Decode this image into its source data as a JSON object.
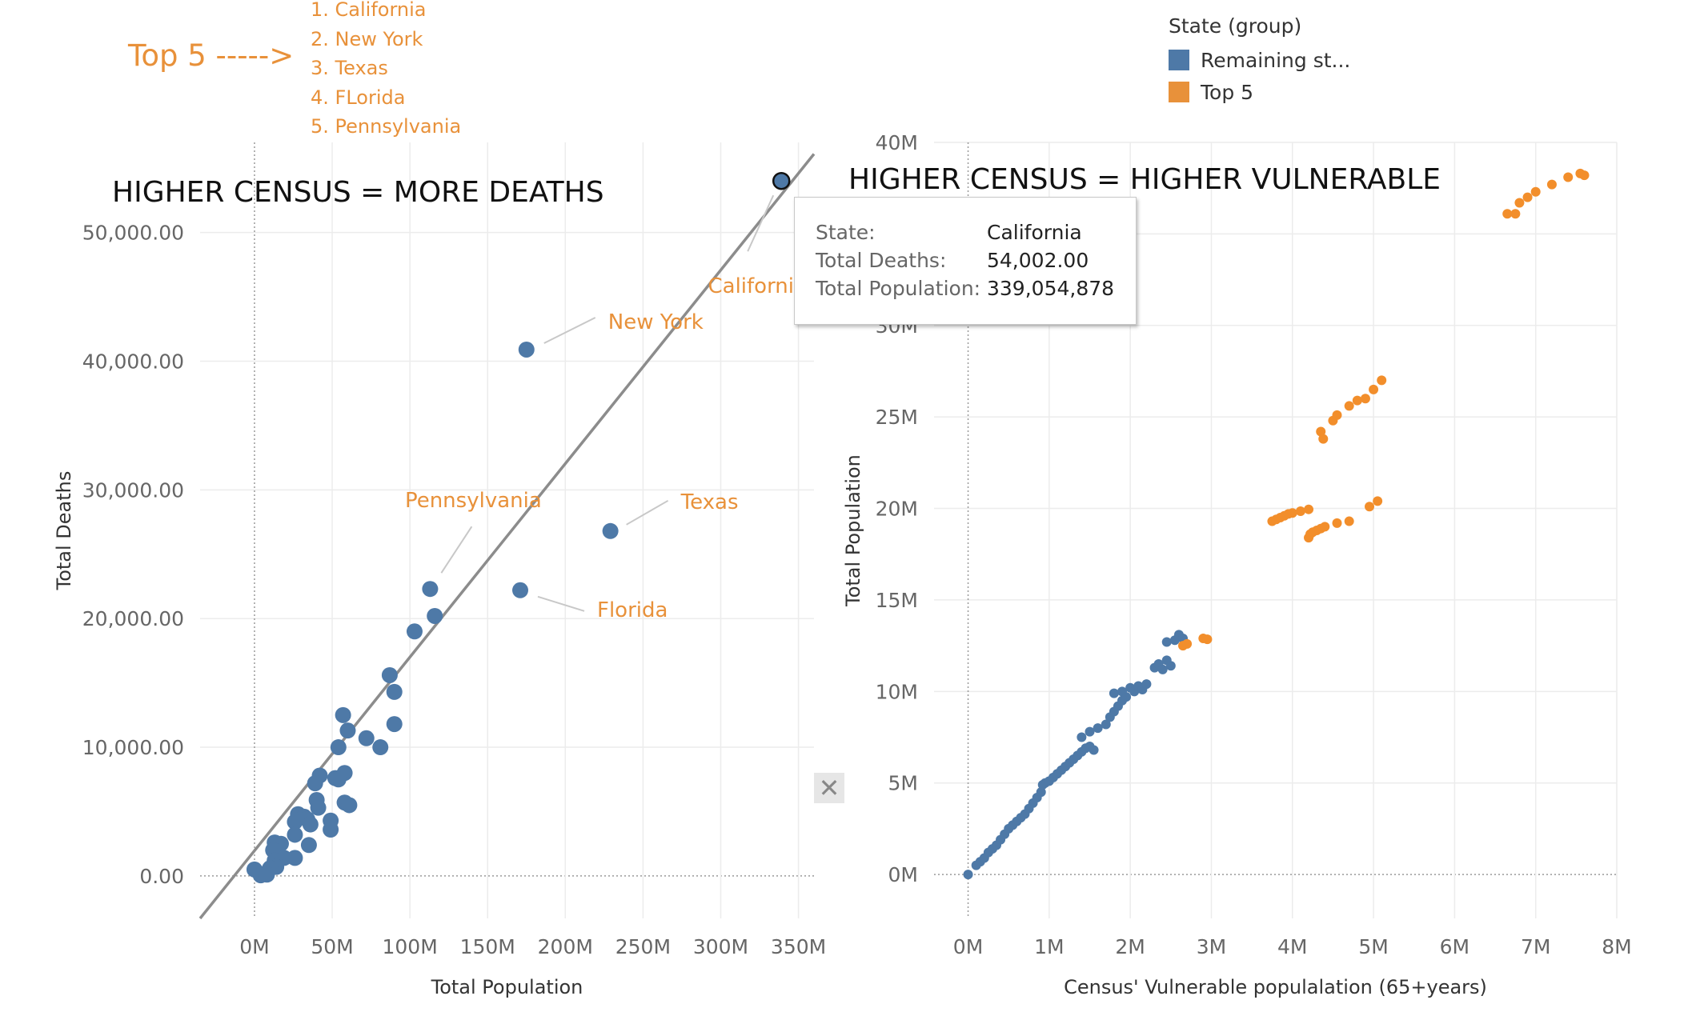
{
  "annotation": {
    "top5_label": "Top 5 ----->",
    "top5_items": [
      "1. California",
      "2. New York",
      "3. Texas",
      "4. FLorida",
      "5. Pennsylvania"
    ]
  },
  "legend": {
    "title": "State (group)",
    "items": [
      {
        "label": "Remaining st...",
        "color": "#4e79a7"
      },
      {
        "label": "Top 5",
        "color": "#f28e2b"
      }
    ]
  },
  "tooltip": {
    "rows": [
      {
        "key": "State:",
        "value": "California"
      },
      {
        "key": "Total Deaths:",
        "value": "54,002.00"
      },
      {
        "key": "Total Population:",
        "value": "339,054,878"
      }
    ]
  },
  "controls": {
    "close_icon": "close-icon"
  },
  "colors": {
    "blue": "#4e79a7",
    "orange": "#e8913a",
    "grid": "#ececec"
  },
  "chart_data": [
    {
      "type": "scatter",
      "title": "HIGHER CENSUS = MORE DEATHS",
      "xlabel": "Total Population",
      "ylabel": "Total Deaths",
      "xlim": [
        -35,
        360
      ],
      "ylim": [
        -3300,
        57000
      ],
      "xticks": [
        0,
        50,
        100,
        150,
        200,
        250,
        300,
        350
      ],
      "xtick_labels": [
        "0M",
        "50M",
        "100M",
        "150M",
        "200M",
        "250M",
        "300M",
        "350M"
      ],
      "yticks": [
        0,
        10000,
        20000,
        30000,
        40000,
        50000
      ],
      "ytick_labels": [
        "0.00",
        "10,000.00",
        "20,000.00",
        "30,000.00",
        "40,000.00",
        "50,000.00"
      ],
      "trend_line": {
        "x": [
          -35,
          360
        ],
        "y": [
          -3300,
          56100
        ]
      },
      "highlighted": {
        "name": "California",
        "x": 339,
        "y": 54002
      },
      "labels": [
        {
          "text": "California",
          "x": 339,
          "y": 54002
        },
        {
          "text": "New York",
          "x": 175,
          "y": 40900
        },
        {
          "text": "Texas",
          "x": 229,
          "y": 26800
        },
        {
          "text": "Florida",
          "x": 171,
          "y": 22200
        },
        {
          "text": "Pennsylvania",
          "x": 113,
          "y": 22300
        }
      ],
      "series": [
        {
          "name": "Remaining st...",
          "points": [
            [
              339,
              54002
            ],
            [
              175,
              40900
            ],
            [
              229,
              26800
            ],
            [
              171,
              22200
            ],
            [
              113,
              22300
            ],
            [
              116,
              20200
            ],
            [
              103,
              19000
            ],
            [
              87,
              15600
            ],
            [
              90,
              14300
            ],
            [
              57,
              12500
            ],
            [
              60,
              11300
            ],
            [
              90,
              11800
            ],
            [
              72,
              10700
            ],
            [
              81,
              10000
            ],
            [
              54,
              10000
            ],
            [
              58,
              8000
            ],
            [
              42,
              7800
            ],
            [
              39,
              7200
            ],
            [
              54,
              7500
            ],
            [
              52,
              7600
            ],
            [
              40,
              5900
            ],
            [
              41,
              5300
            ],
            [
              58,
              5700
            ],
            [
              61,
              5500
            ],
            [
              28,
              4800
            ],
            [
              32,
              4600
            ],
            [
              34,
              4400
            ],
            [
              49,
              4300
            ],
            [
              26,
              4200
            ],
            [
              36,
              4000
            ],
            [
              49,
              3600
            ],
            [
              26,
              3200
            ],
            [
              35,
              2400
            ],
            [
              13,
              2600
            ],
            [
              17,
              2500
            ],
            [
              12,
              2000
            ],
            [
              26,
              1400
            ],
            [
              19,
              1400
            ],
            [
              13,
              1200
            ],
            [
              14,
              700
            ],
            [
              10,
              600
            ],
            [
              0,
              500
            ],
            [
              7,
              200
            ],
            [
              4,
              50
            ],
            [
              8,
              100
            ]
          ]
        }
      ]
    },
    {
      "type": "scatter",
      "title": "HIGHER CENSUS = HIGHER VULNERABLE",
      "xlabel": "Census' Vulnerable populalation (65+years)",
      "ylabel": "Total Population",
      "xlim": [
        -0.42,
        8.0
      ],
      "ylim": [
        -2.4,
        40.0
      ],
      "xticks": [
        0,
        1,
        2,
        3,
        4,
        5,
        6,
        7,
        8
      ],
      "xtick_labels": [
        "0M",
        "1M",
        "2M",
        "3M",
        "4M",
        "5M",
        "6M",
        "7M",
        "8M"
      ],
      "yticks": [
        0,
        5,
        10,
        15,
        20,
        25,
        30,
        35,
        40
      ],
      "ytick_labels": [
        "0M",
        "5M",
        "10M",
        "15M",
        "20M",
        "25M",
        "30M",
        "",
        "40M"
      ],
      "series": [
        {
          "name": "Remaining st...",
          "color": "#4e79a7",
          "points": [
            [
              0.0,
              0.0
            ],
            [
              0.1,
              0.5
            ],
            [
              0.15,
              0.7
            ],
            [
              0.2,
              0.9
            ],
            [
              0.25,
              1.2
            ],
            [
              0.3,
              1.4
            ],
            [
              0.35,
              1.6
            ],
            [
              0.4,
              1.9
            ],
            [
              0.45,
              2.2
            ],
            [
              0.5,
              2.5
            ],
            [
              0.55,
              2.7
            ],
            [
              0.6,
              2.9
            ],
            [
              0.65,
              3.1
            ],
            [
              0.7,
              3.3
            ],
            [
              0.75,
              3.6
            ],
            [
              0.8,
              3.9
            ],
            [
              0.85,
              4.2
            ],
            [
              0.9,
              4.5
            ],
            [
              0.92,
              4.9
            ],
            [
              0.95,
              5.0
            ],
            [
              1.0,
              5.1
            ],
            [
              1.05,
              5.3
            ],
            [
              1.1,
              5.5
            ],
            [
              1.15,
              5.7
            ],
            [
              1.2,
              5.9
            ],
            [
              1.25,
              6.1
            ],
            [
              1.3,
              6.3
            ],
            [
              1.35,
              6.5
            ],
            [
              1.4,
              6.7
            ],
            [
              1.45,
              6.9
            ],
            [
              1.5,
              7.0
            ],
            [
              1.55,
              6.8
            ],
            [
              1.4,
              7.5
            ],
            [
              1.5,
              7.8
            ],
            [
              1.6,
              8.0
            ],
            [
              1.7,
              8.2
            ],
            [
              1.75,
              8.6
            ],
            [
              1.8,
              8.9
            ],
            [
              1.85,
              9.2
            ],
            [
              1.9,
              9.5
            ],
            [
              1.95,
              9.7
            ],
            [
              1.8,
              9.9
            ],
            [
              1.9,
              10.0
            ],
            [
              2.0,
              10.2
            ],
            [
              2.05,
              10.0
            ],
            [
              2.1,
              10.3
            ],
            [
              2.15,
              10.1
            ],
            [
              2.2,
              10.4
            ],
            [
              2.3,
              11.3
            ],
            [
              2.35,
              11.5
            ],
            [
              2.4,
              11.2
            ],
            [
              2.45,
              11.7
            ],
            [
              2.5,
              11.4
            ],
            [
              2.45,
              12.7
            ],
            [
              2.55,
              12.8
            ],
            [
              2.6,
              13.1
            ],
            [
              2.65,
              12.9
            ]
          ]
        },
        {
          "name": "Top 5",
          "color": "#f28e2b",
          "points": [
            [
              2.65,
              12.5
            ],
            [
              2.7,
              12.6
            ],
            [
              2.9,
              12.9
            ],
            [
              2.95,
              12.85
            ],
            [
              3.75,
              19.3
            ],
            [
              3.8,
              19.4
            ],
            [
              3.85,
              19.5
            ],
            [
              3.9,
              19.6
            ],
            [
              3.95,
              19.7
            ],
            [
              4.0,
              19.75
            ],
            [
              4.1,
              19.85
            ],
            [
              4.2,
              19.95
            ],
            [
              4.2,
              18.4
            ],
            [
              4.22,
              18.6
            ],
            [
              4.25,
              18.7
            ],
            [
              4.3,
              18.8
            ],
            [
              4.35,
              18.9
            ],
            [
              4.4,
              19.0
            ],
            [
              4.55,
              19.2
            ],
            [
              4.7,
              19.3
            ],
            [
              4.95,
              20.1
            ],
            [
              5.05,
              20.4
            ],
            [
              4.35,
              24.2
            ],
            [
              4.38,
              23.8
            ],
            [
              4.5,
              24.8
            ],
            [
              4.55,
              25.1
            ],
            [
              4.7,
              25.6
            ],
            [
              4.8,
              25.9
            ],
            [
              4.9,
              26.0
            ],
            [
              5.0,
              26.5
            ],
            [
              5.1,
              27.0
            ],
            [
              6.65,
              36.1
            ],
            [
              6.75,
              36.1
            ],
            [
              6.8,
              36.7
            ],
            [
              6.9,
              37.0
            ],
            [
              7.0,
              37.3
            ],
            [
              7.2,
              37.7
            ],
            [
              7.4,
              38.1
            ],
            [
              7.55,
              38.3
            ],
            [
              7.6,
              38.2
            ]
          ]
        }
      ]
    }
  ]
}
